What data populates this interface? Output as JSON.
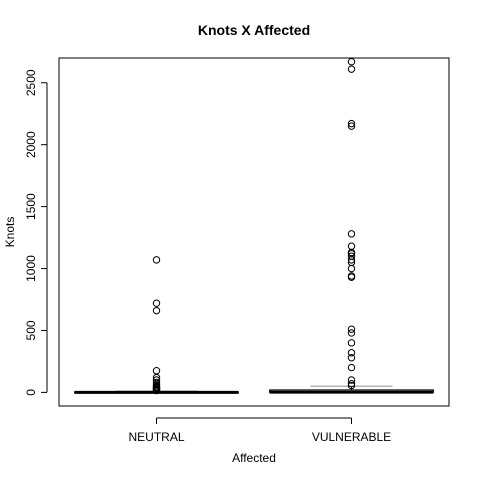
{
  "chart_data": {
    "type": "boxplot",
    "title": "Knots X Affected",
    "xlabel": "Affected",
    "ylabel": "Knots",
    "categories": [
      "NEUTRAL",
      "VULNERABLE"
    ],
    "yticks": [
      0,
      500,
      1000,
      1500,
      2000,
      2500
    ],
    "ylim": [
      -110,
      2700
    ],
    "grid": false,
    "legend": "none",
    "boxes": [
      {
        "category": "NEUTRAL",
        "whisker_low": 0,
        "q1": 0,
        "median": 0,
        "q3": 3,
        "whisker_high": 10,
        "outliers": [
          15,
          20,
          25,
          30,
          35,
          40,
          45,
          55,
          65,
          80,
          100,
          120,
          175,
          660,
          720,
          1070
        ]
      },
      {
        "category": "VULNERABLE",
        "whisker_low": 0,
        "q1": 0,
        "median": 2,
        "q3": 20,
        "whisker_high": 50,
        "outliers": [
          55,
          70,
          100,
          200,
          280,
          320,
          400,
          480,
          510,
          930,
          940,
          1000,
          1050,
          1070,
          1100,
          1120,
          1130,
          1180,
          1280,
          2150,
          2170,
          2610,
          2670
        ]
      }
    ],
    "colors": {
      "box_border": "#000000",
      "whisker": "#000000",
      "cap": "#9a9a9a",
      "median": "#000000"
    }
  }
}
